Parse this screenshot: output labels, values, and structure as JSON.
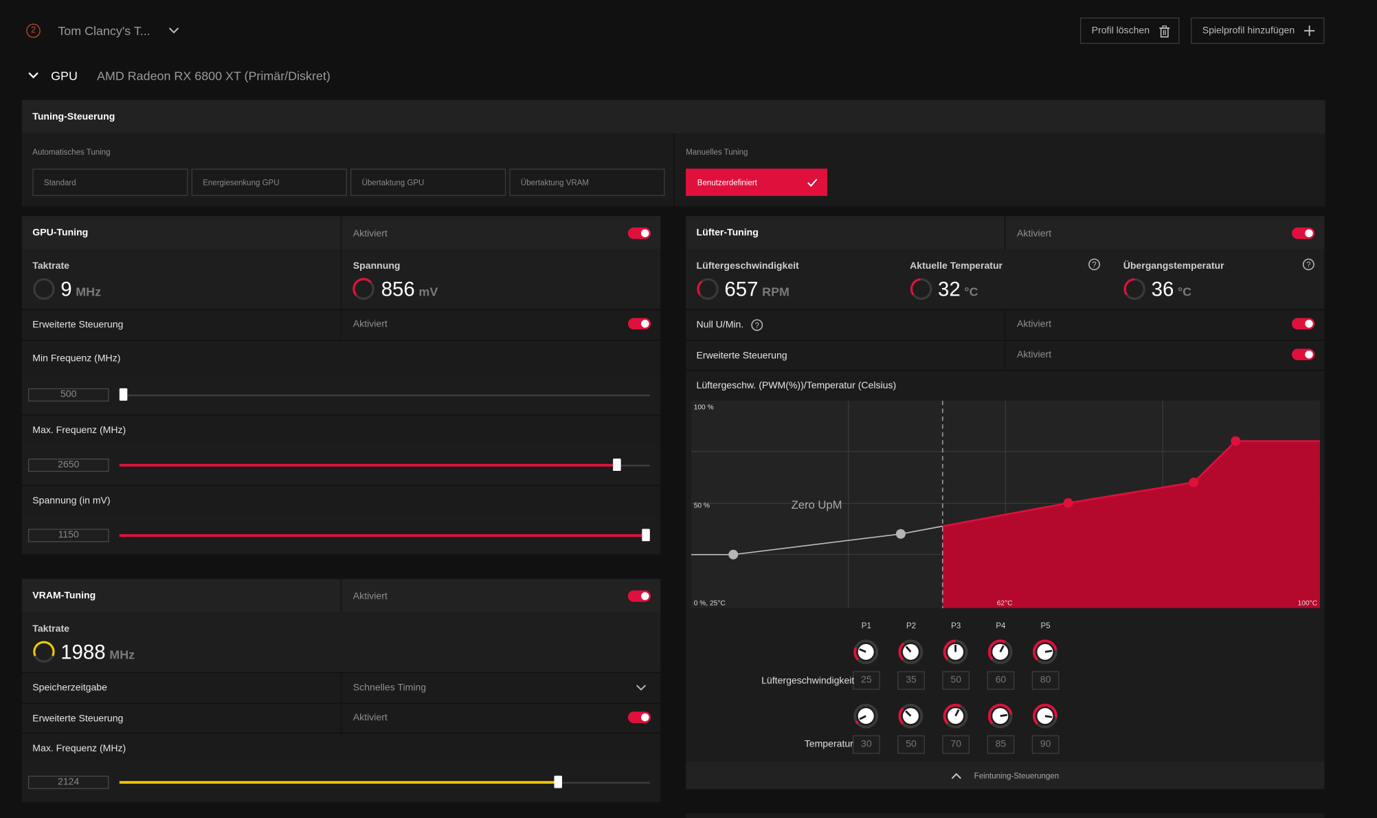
{
  "header": {
    "badge_number": "2",
    "game_title": "Tom Clancy's T...",
    "delete_profile_label": "Profil löschen",
    "add_profile_label": "Spielprofil hinzufügen",
    "gpu_section_label": "GPU",
    "gpu_name": "AMD Radeon RX 6800 XT (Primär/Diskret)"
  },
  "tuning_control": {
    "title": "Tuning-Steuerung",
    "auto_label": "Automatisches Tuning",
    "auto_options": [
      "Standard",
      "Energiesenkung GPU",
      "Übertaktung GPU",
      "Übertaktung VRAM"
    ],
    "manual_label": "Manuelles Tuning",
    "manual_option": "Benutzerdefiniert"
  },
  "gpu_tuning": {
    "title": "GPU-Tuning",
    "status": "Aktiviert",
    "enabled": true,
    "clock_label": "Taktrate",
    "clock_value": "9",
    "clock_unit": "MHz",
    "voltage_label": "Spannung",
    "voltage_value": "856",
    "voltage_unit": "mV",
    "advanced_label": "Erweiterte Steuerung",
    "advanced_status": "Aktiviert",
    "min_freq_label": "Min Frequenz (MHz)",
    "min_freq_value": "500",
    "min_freq_fraction": 0.0,
    "max_freq_label": "Max. Frequenz (MHz)",
    "max_freq_value": "2650",
    "max_freq_fraction": 0.93,
    "voltage_mv_label": "Spannung (in mV)",
    "voltage_mv_value": "1150",
    "voltage_mv_fraction": 1.0
  },
  "vram_tuning": {
    "title": "VRAM-Tuning",
    "status": "Aktiviert",
    "enabled": true,
    "clock_label": "Taktrate",
    "clock_value": "1988",
    "clock_unit": "MHz",
    "timing_label": "Speicherzeitgabe",
    "timing_value": "Schnelles Timing",
    "advanced_label": "Erweiterte Steuerung",
    "advanced_status": "Aktiviert",
    "max_freq_label": "Max. Frequenz (MHz)",
    "max_freq_value": "2124",
    "max_freq_fraction": 0.82
  },
  "fan_tuning": {
    "title": "Lüfter-Tuning",
    "status": "Aktiviert",
    "enabled": true,
    "fan_speed_label": "Lüftergeschwindigkeit",
    "fan_speed_value": "657",
    "fan_speed_unit": "RPM",
    "current_temp_label": "Aktuelle Temperatur",
    "current_temp_value": "32",
    "current_temp_unit": "°C",
    "junction_temp_label": "Übergangstemperatur",
    "junction_temp_value": "36",
    "junction_temp_unit": "°C",
    "zero_rpm_label": "Null U/Min.",
    "zero_rpm_status": "Aktiviert",
    "advanced_label": "Erweiterte Steuerung",
    "advanced_status": "Aktiviert",
    "curve_title": "Lüftergeschw. (PWM(%))/Temperatur (Celsius)",
    "fine_tune_label": "Feintuning-Steuerungen",
    "point_labels": [
      "P1",
      "P2",
      "P3",
      "P4",
      "P5"
    ],
    "row_speed_label": "Lüftergeschwindigkeit",
    "row_temp_label": "Temperatur",
    "speed_values": [
      "25",
      "35",
      "50",
      "60",
      "80"
    ],
    "temp_values": [
      "30",
      "50",
      "70",
      "85",
      "90"
    ]
  },
  "chart_data": {
    "type": "area",
    "title": "Lüftergeschw. (PWM(%))/Temperatur (Celsius)",
    "x": [
      30,
      50,
      70,
      85,
      90
    ],
    "series": [
      {
        "values": [
          25,
          35,
          50,
          60,
          80
        ]
      }
    ],
    "xlim": [
      25,
      100
    ],
    "ylim": [
      0,
      100
    ],
    "y_tick_labels": [
      "100 %",
      "50 %"
    ],
    "x_tick_labels": [
      "0 %, 25°C",
      "62°C",
      "100°C"
    ],
    "zero_rpm_label": "Zero UpM",
    "zero_rpm_threshold": 55,
    "grid": true
  },
  "colors": {
    "accent": "#e0103c",
    "accent_fill": "#b4092d",
    "vram_accent": "#f0c800"
  }
}
